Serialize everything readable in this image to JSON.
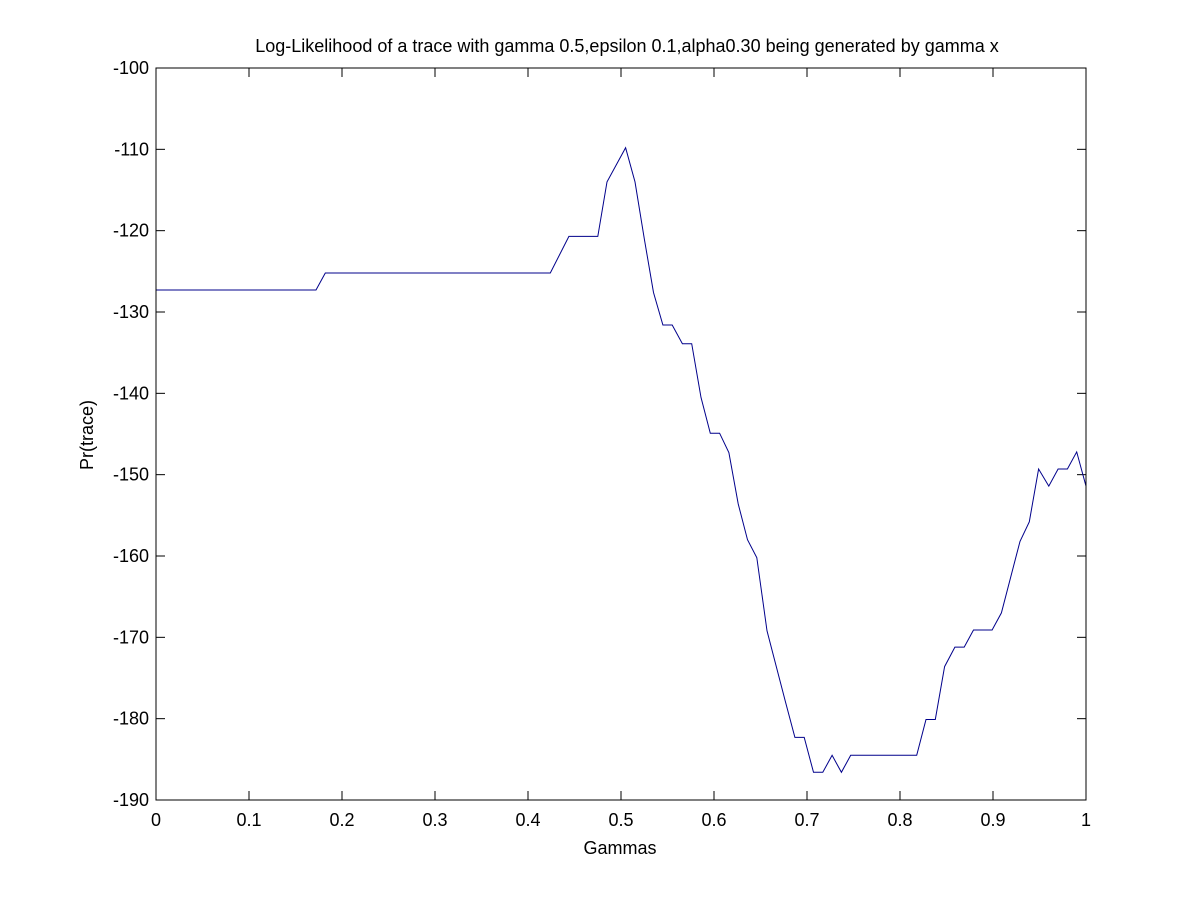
{
  "chart_data": {
    "type": "line",
    "title": "Log-Likelihood of a trace with gamma 0.5,epsilon 0.1,alpha0.30 being generated by gamma x",
    "xlabel": "Gammas",
    "ylabel": "Pr(trace)",
    "xlim": [
      0,
      1
    ],
    "ylim": [
      -190,
      -100
    ],
    "xticks": [
      0,
      0.1,
      0.2,
      0.3,
      0.4,
      0.5,
      0.6,
      0.7,
      0.8,
      0.9,
      1
    ],
    "xtick_labels": [
      "0",
      "0.1",
      "0.2",
      "0.3",
      "0.4",
      "0.5",
      "0.6",
      "0.7",
      "0.8",
      "0.9",
      "1"
    ],
    "yticks": [
      -100,
      -110,
      -120,
      -130,
      -140,
      -150,
      -160,
      -170,
      -180,
      -190
    ],
    "ytick_labels": [
      "-100",
      "-110",
      "-120",
      "-130",
      "-140",
      "-150",
      "-160",
      "-170",
      "-180",
      "-190"
    ],
    "grid": false,
    "legend": "none",
    "series": [
      {
        "color": "#00008b",
        "x": [
          0,
          0.172,
          0.182,
          0.424,
          0.444,
          0.475,
          0.485,
          0.505,
          0.515,
          0.525,
          0.535,
          0.545,
          0.555,
          0.566,
          0.576,
          0.586,
          0.596,
          0.606,
          0.616,
          0.626,
          0.636,
          0.646,
          0.657,
          0.667,
          0.677,
          0.687,
          0.697,
          0.707,
          0.717,
          0.727,
          0.737,
          0.747,
          0.758,
          0.768,
          0.778,
          0.788,
          0.798,
          0.808,
          0.818,
          0.828,
          0.838,
          0.848,
          0.859,
          0.869,
          0.879,
          0.889,
          0.899,
          0.909,
          0.919,
          0.929,
          0.939,
          0.949,
          0.96,
          0.97,
          0.98,
          0.99,
          1.0
        ],
        "values": [
          -127.3,
          -127.3,
          -125.2,
          -125.2,
          -120.7,
          -120.7,
          -114.0,
          -109.8,
          -114.0,
          -121.0,
          -127.6,
          -131.6,
          -131.6,
          -133.9,
          -133.9,
          -140.5,
          -144.9,
          -144.9,
          -147.3,
          -153.6,
          -158.0,
          -160.2,
          -169.2,
          -173.6,
          -178.0,
          -182.3,
          -182.3,
          -186.6,
          -186.6,
          -184.5,
          -186.6,
          -184.5,
          -184.5,
          -184.5,
          -184.5,
          -184.5,
          -184.5,
          -184.5,
          -184.5,
          -180.1,
          -180.1,
          -173.6,
          -171.2,
          -171.2,
          -169.1,
          -169.1,
          -169.1,
          -167.0,
          -162.6,
          -158.2,
          -155.8,
          -149.3,
          -151.4,
          -149.3,
          -149.3,
          -147.2,
          -151.4
        ]
      }
    ]
  }
}
